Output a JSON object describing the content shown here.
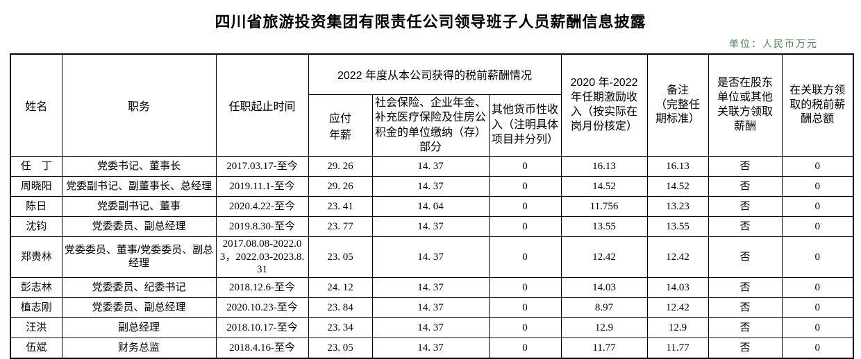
{
  "page": {
    "title": "四川省旅游投资集团有限责任公司领导班子人员薪酬信息披露",
    "unit_note": "单位：人民币万元",
    "unit_note_color": "#557f55"
  },
  "table": {
    "header": {
      "name": "姓名",
      "position": "职务",
      "tenure": "任职起止时间",
      "salary_2022_group": "2022 年度从本公司获得的税前薪酬情况",
      "salary_sub_pay": "应付\n年薪",
      "salary_sub_insurance": "社会保险、企业年金、补充医疗保险及住房公积金的单位缴纳（存）部分",
      "salary_sub_other": "其他货币性收入（注明具体项目并分列）",
      "incentive": "2020 年-2022年任期激励收入（按实际在岗月份核定）",
      "remark": "备注\n（完整任\n期标准）",
      "related_party_paid": "是否在股东单位或其他关联方领取薪酬",
      "related_party_amount": "在关联方领取的税前薪酬总额"
    },
    "rows": [
      {
        "name": "任　丁",
        "position": "党委书记、董事长",
        "tenure": "2017.03.17-至今",
        "pay": "29. 26",
        "insurance": "14. 37",
        "other": "0",
        "incentive": "16.13",
        "remark": "16.13",
        "related_paid": "否",
        "related_amount": "0",
        "tall": false
      },
      {
        "name": "周晓阳",
        "position": "党委副书记、副董事长、总经理",
        "tenure": "2019.11.1-至今",
        "pay": "29. 26",
        "insurance": "14. 37",
        "other": "0",
        "incentive": "14.52",
        "remark": "14.52",
        "related_paid": "否",
        "related_amount": "0",
        "tall": false
      },
      {
        "name": "陈日",
        "position": "党委副书记、董事",
        "tenure": "2020.4.22-至今",
        "pay": "23. 41",
        "insurance": "14. 04",
        "other": "0",
        "incentive": "11.756",
        "remark": "13.23",
        "related_paid": "否",
        "related_amount": "0",
        "tall": false
      },
      {
        "name": "沈钧",
        "position": "党委委员、副总经理",
        "tenure": "2019.8.30-至今",
        "pay": "23. 77",
        "insurance": "14. 37",
        "other": "0",
        "incentive": "13.55",
        "remark": "13.55",
        "related_paid": "否",
        "related_amount": "0",
        "tall": false
      },
      {
        "name": "郑贵林",
        "position": "党委委员、董事/党委委员、副总经理",
        "tenure": "2017.08.08-2022.03，2022.03-2023.8.31",
        "pay": "23. 05",
        "insurance": "14. 37",
        "other": "0",
        "incentive": "12.42",
        "remark": "12.42",
        "related_paid": "否",
        "related_amount": "0",
        "tall": true
      },
      {
        "name": "彭志林",
        "position": "党委委员、纪委书记",
        "tenure": "2018.12.6-至今",
        "pay": "24. 12",
        "insurance": "14. 37",
        "other": "0",
        "incentive": "14.03",
        "remark": "14.03",
        "related_paid": "否",
        "related_amount": "0",
        "tall": false
      },
      {
        "name": "植志刚",
        "position": "党委委员、副总经理",
        "tenure": "2020.10.23-至今",
        "pay": "23. 84",
        "insurance": "14. 37",
        "other": "0",
        "incentive": "8.97",
        "remark": "12.42",
        "related_paid": "否",
        "related_amount": "0",
        "tall": false
      },
      {
        "name": "汪洪",
        "position": "副总经理",
        "tenure": "2018.10.17-至今",
        "pay": "23. 34",
        "insurance": "14. 37",
        "other": "0",
        "incentive": "12.9",
        "remark": "12.9",
        "related_paid": "否",
        "related_amount": "0",
        "tall": false
      },
      {
        "name": "伍斌",
        "position": "财务总监",
        "tenure": "2018.4.16-至今",
        "pay": "23. 05",
        "insurance": "14. 37",
        "other": "0",
        "incentive": "11.77",
        "remark": "11.77",
        "related_paid": "否",
        "related_amount": "0",
        "tall": false
      }
    ]
  }
}
